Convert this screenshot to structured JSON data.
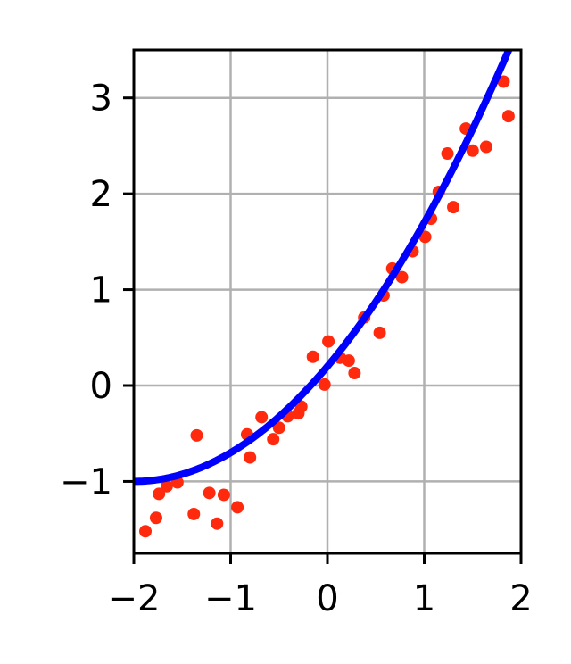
{
  "chart_data": {
    "type": "scatter",
    "title": "",
    "xlabel": "",
    "ylabel": "",
    "xlim": [
      -2,
      2
    ],
    "ylim": [
      -1.75,
      3.5
    ],
    "grid": true,
    "x_ticks": [
      -2,
      -1,
      0,
      1,
      2
    ],
    "x_tick_labels": [
      "−2",
      "−1",
      "0",
      "1",
      "2"
    ],
    "y_ticks": [
      -1,
      0,
      1,
      2,
      3
    ],
    "y_tick_labels": [
      "−1",
      "0",
      "1",
      "2",
      "3"
    ],
    "series": [
      {
        "kind": "scatter",
        "color": "#ff2a0e",
        "points": [
          [
            -1.88,
            -1.52
          ],
          [
            -1.77,
            -1.38
          ],
          [
            -1.74,
            -1.13
          ],
          [
            -1.66,
            -1.05
          ],
          [
            -1.55,
            -1.01
          ],
          [
            -1.38,
            -1.34
          ],
          [
            -1.35,
            -0.52
          ],
          [
            -1.22,
            -1.12
          ],
          [
            -1.14,
            -1.44
          ],
          [
            -1.07,
            -1.14
          ],
          [
            -0.93,
            -1.27
          ],
          [
            -0.83,
            -0.51
          ],
          [
            -0.8,
            -0.75
          ],
          [
            -0.68,
            -0.33
          ],
          [
            -0.56,
            -0.56
          ],
          [
            -0.5,
            -0.44
          ],
          [
            -0.41,
            -0.32
          ],
          [
            -0.3,
            -0.29
          ],
          [
            -0.27,
            -0.22
          ],
          [
            -0.15,
            0.3
          ],
          [
            -0.03,
            0.01
          ],
          [
            0.01,
            0.46
          ],
          [
            0.13,
            0.29
          ],
          [
            0.22,
            0.26
          ],
          [
            0.28,
            0.13
          ],
          [
            0.38,
            0.71
          ],
          [
            0.54,
            0.55
          ],
          [
            0.58,
            0.94
          ],
          [
            0.67,
            1.22
          ],
          [
            0.77,
            1.13
          ],
          [
            0.88,
            1.4
          ],
          [
            1.01,
            1.55
          ],
          [
            1.07,
            1.74
          ],
          [
            1.15,
            2.02
          ],
          [
            1.24,
            2.42
          ],
          [
            1.3,
            1.86
          ],
          [
            1.43,
            2.68
          ],
          [
            1.5,
            2.45
          ],
          [
            1.64,
            2.49
          ],
          [
            1.82,
            3.17
          ],
          [
            1.87,
            2.81
          ]
        ]
      },
      {
        "kind": "line",
        "color": "#0000ff",
        "model": "quadratic",
        "coefficients": {
          "a": 0.3,
          "b": 1.2,
          "c": 0.2
        }
      }
    ]
  }
}
